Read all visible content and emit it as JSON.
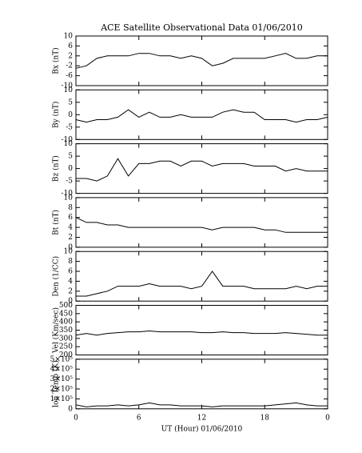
{
  "chart_data": [
    {
      "type": "line",
      "title": "ACE Satellite Observational Data   01/06/2010",
      "ylabel": "Bx (nT)",
      "x": [
        0,
        1,
        2,
        3,
        4,
        5,
        6,
        7,
        8,
        9,
        10,
        11,
        12,
        13,
        14,
        15,
        16,
        17,
        18,
        19,
        20,
        21,
        22,
        23,
        24
      ],
      "values": [
        -3,
        -2,
        1,
        2,
        2,
        2,
        3,
        3,
        2,
        2,
        1,
        2,
        1,
        -2,
        -1,
        1,
        1,
        1,
        1,
        2,
        3,
        1,
        1,
        2,
        2
      ],
      "xlim": [
        0,
        24
      ],
      "xticks": [
        0,
        6,
        12,
        18,
        {
          "value": 24,
          "label": "0"
        }
      ],
      "ylim": [
        -10,
        10
      ],
      "yticks": [
        -10,
        -6,
        -2,
        2,
        6,
        10
      ],
      "color": "#000000"
    },
    {
      "type": "line",
      "ylabel": "By (nT)",
      "x": [
        0,
        1,
        2,
        3,
        4,
        5,
        6,
        7,
        8,
        9,
        10,
        11,
        12,
        13,
        14,
        15,
        16,
        17,
        18,
        19,
        20,
        21,
        22,
        23,
        24
      ],
      "values": [
        -2,
        -3,
        -2,
        -2,
        -1,
        2,
        -1,
        1,
        -1,
        -1,
        0,
        -1,
        -1,
        -1,
        1,
        2,
        1,
        1,
        -2,
        -2,
        -2,
        -3,
        -2,
        -2,
        -1
      ],
      "xlim": [
        0,
        24
      ],
      "xticks": [
        0,
        6,
        12,
        18,
        {
          "value": 24,
          "label": "0"
        }
      ],
      "ylim": [
        -10,
        10
      ],
      "yticks": [
        -10,
        -5,
        0,
        5,
        10
      ],
      "color": "#000000"
    },
    {
      "type": "line",
      "ylabel": "Bz (nT)",
      "x": [
        0,
        1,
        2,
        3,
        4,
        5,
        6,
        7,
        8,
        9,
        10,
        11,
        12,
        13,
        14,
        15,
        16,
        17,
        18,
        19,
        20,
        21,
        22,
        23,
        24
      ],
      "values": [
        -4,
        -4,
        -5,
        -3,
        4,
        -3,
        2,
        2,
        3,
        3,
        1,
        3,
        3,
        1,
        2,
        2,
        2,
        1,
        1,
        1,
        -1,
        0,
        -1,
        -1,
        -1
      ],
      "xlim": [
        0,
        24
      ],
      "xticks": [
        0,
        6,
        12,
        18,
        {
          "value": 24,
          "label": "0"
        }
      ],
      "ylim": [
        -10,
        10
      ],
      "yticks": [
        -10,
        -5,
        0,
        5,
        10
      ],
      "color": "#000000"
    },
    {
      "type": "line",
      "ylabel": "Bt (nT)",
      "x": [
        0,
        1,
        2,
        3,
        4,
        5,
        6,
        7,
        8,
        9,
        10,
        11,
        12,
        13,
        14,
        15,
        16,
        17,
        18,
        19,
        20,
        21,
        22,
        23,
        24
      ],
      "values": [
        6,
        5,
        5,
        4.5,
        4.5,
        4,
        4,
        4,
        4,
        4,
        4,
        4,
        4,
        3.5,
        4,
        4,
        4,
        4,
        3.5,
        3.5,
        3,
        3,
        3,
        3,
        3
      ],
      "xlim": [
        0,
        24
      ],
      "xticks": [
        0,
        6,
        12,
        18,
        {
          "value": 24,
          "label": "0"
        }
      ],
      "ylim": [
        0,
        10
      ],
      "yticks": [
        0,
        2,
        4,
        6,
        8,
        10
      ],
      "color": "#000000"
    },
    {
      "type": "line",
      "ylabel": "Den (1/CC)",
      "x": [
        0,
        1,
        2,
        3,
        4,
        5,
        6,
        7,
        8,
        9,
        10,
        11,
        12,
        13,
        14,
        15,
        16,
        17,
        18,
        19,
        20,
        21,
        22,
        23,
        24
      ],
      "values": [
        1,
        1,
        1.5,
        2,
        3,
        3,
        3,
        3.5,
        3,
        3,
        3,
        2.5,
        3,
        6,
        3,
        3,
        3,
        2.5,
        2.5,
        2.5,
        2.5,
        3,
        2.5,
        3,
        3
      ],
      "xlim": [
        0,
        24
      ],
      "xticks": [
        0,
        6,
        12,
        18,
        {
          "value": 24,
          "label": "0"
        }
      ],
      "ylim": [
        0,
        10
      ],
      "yticks": [
        0,
        2,
        4,
        6,
        8,
        10
      ],
      "color": "#000000"
    },
    {
      "type": "line",
      "ylabel": "Vel (Km/sec)",
      "x": [
        0,
        1,
        2,
        3,
        4,
        5,
        6,
        7,
        8,
        9,
        10,
        11,
        12,
        13,
        14,
        15,
        16,
        17,
        18,
        19,
        20,
        21,
        22,
        23,
        24
      ],
      "values": [
        320,
        330,
        320,
        330,
        335,
        340,
        340,
        345,
        340,
        340,
        340,
        340,
        335,
        335,
        340,
        335,
        335,
        330,
        330,
        330,
        335,
        330,
        325,
        320,
        320
      ],
      "xlim": [
        0,
        24
      ],
      "xticks": [
        0,
        6,
        12,
        18,
        {
          "value": 24,
          "label": "0"
        }
      ],
      "ylim": [
        200,
        500
      ],
      "yticks": [
        200,
        250,
        300,
        350,
        400,
        450,
        500
      ],
      "color": "#000000"
    },
    {
      "type": "line",
      "ylabel": "Ion Temp (K)",
      "xlabel": "UT (Hour)   01/06/2010",
      "x": [
        0,
        1,
        2,
        3,
        4,
        5,
        6,
        7,
        8,
        9,
        10,
        11,
        12,
        13,
        14,
        15,
        16,
        17,
        18,
        19,
        20,
        21,
        22,
        23,
        24
      ],
      "values": [
        40000,
        20000,
        30000,
        30000,
        40000,
        30000,
        40000,
        60000,
        40000,
        40000,
        30000,
        30000,
        30000,
        20000,
        30000,
        30000,
        30000,
        30000,
        30000,
        40000,
        50000,
        60000,
        40000,
        30000,
        30000
      ],
      "xlim": [
        0,
        24
      ],
      "xticks": [
        0,
        6,
        12,
        18,
        {
          "value": 24,
          "label": "0"
        }
      ],
      "ylim": [
        0,
        500000
      ],
      "yticks": [
        0,
        {
          "value": 100000,
          "label": "1×10⁵"
        },
        {
          "value": 200000,
          "label": "2×10⁵"
        },
        {
          "value": 300000,
          "label": "3×10⁵"
        },
        {
          "value": 400000,
          "label": "4×10⁵"
        },
        {
          "value": 500000,
          "label": "5×10⁵"
        }
      ],
      "color": "#000000"
    }
  ]
}
